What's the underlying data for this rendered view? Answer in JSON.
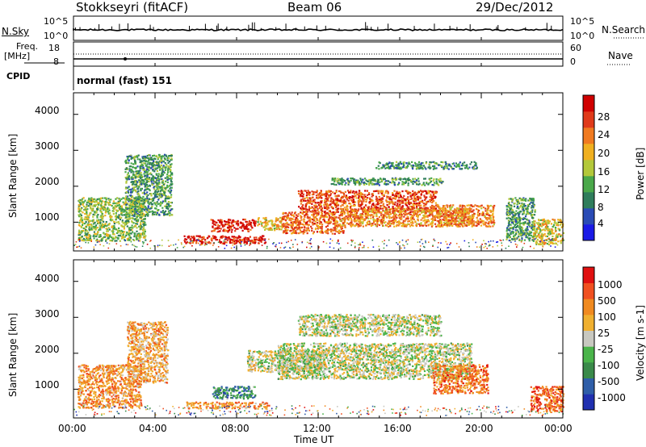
{
  "header": {
    "station": "Stokkseyri (fitACF)",
    "beam": "Beam 06",
    "date": "29/Dec/2012"
  },
  "strip_panels": {
    "nsky": {
      "label": "N.Sky",
      "left_tick_top": "10^5",
      "left_tick_bottom": "10^0",
      "right_label": "N.Search",
      "right_tick_top": "10^5",
      "right_tick_bottom": "10^0"
    },
    "freq": {
      "label_line1": "Freq.",
      "label_line2": "[MHz]",
      "left_tick_top": "18",
      "left_tick_bottom": "8",
      "right_label": "Nave",
      "right_tick_top": "60",
      "right_tick_bottom": "0"
    },
    "cpid": {
      "label": "CPID",
      "value": "normal (fast) 151"
    }
  },
  "chart_data": [
    {
      "type": "heatmap",
      "name": "power",
      "xlabel": "",
      "ylabel": "Slant Range [km]",
      "x_ticks": [
        "00:00",
        "04:00",
        "08:00",
        "12:00",
        "16:00",
        "20:00",
        "00:00"
      ],
      "y_ticks": [
        "1000",
        "2000",
        "3000",
        "4000"
      ],
      "ylim": [
        200,
        4600
      ],
      "xlim_hours": [
        0,
        24
      ],
      "colorbar": {
        "label": "Power [dB]",
        "ticks": [
          "4",
          "8",
          "12",
          "16",
          "20",
          "24",
          "28"
        ],
        "colors": [
          "#1a1ae6",
          "#2a4bb5",
          "#2f7d5c",
          "#4aa84a",
          "#b3c83a",
          "#f0b020",
          "#f07a20",
          "#e03a1a",
          "#d00000"
        ]
      },
      "regions": [
        {
          "t0": 0.2,
          "t1": 3.5,
          "r0": 500,
          "r1": 1700,
          "level": 0.45
        },
        {
          "t0": 2.5,
          "t1": 4.8,
          "r0": 1200,
          "r1": 2900,
          "level": 0.35
        },
        {
          "t0": 5.4,
          "t1": 9.4,
          "r0": 420,
          "r1": 640,
          "level": 0.9
        },
        {
          "t0": 6.7,
          "t1": 8.9,
          "r0": 750,
          "r1": 1100,
          "level": 0.9
        },
        {
          "t0": 9.0,
          "t1": 10.2,
          "r0": 800,
          "r1": 1150,
          "level": 0.6
        },
        {
          "t0": 10.2,
          "t1": 13.3,
          "r0": 700,
          "r1": 1300,
          "level": 0.75
        },
        {
          "t0": 11.0,
          "t1": 17.8,
          "r0": 1300,
          "r1": 1900,
          "level": 0.8
        },
        {
          "t0": 13.0,
          "t1": 19.6,
          "r0": 900,
          "r1": 1400,
          "level": 0.7
        },
        {
          "t0": 12.6,
          "t1": 18.1,
          "r0": 2050,
          "r1": 2250,
          "level": 0.35
        },
        {
          "t0": 14.8,
          "t1": 19.8,
          "r0": 2500,
          "r1": 2700,
          "level": 0.3
        },
        {
          "t0": 17.8,
          "t1": 20.6,
          "r0": 900,
          "r1": 1500,
          "level": 0.7
        },
        {
          "t0": 21.2,
          "t1": 22.6,
          "r0": 500,
          "r1": 1700,
          "level": 0.35
        },
        {
          "t0": 22.5,
          "t1": 24.0,
          "r0": 400,
          "r1": 1100,
          "level": 0.55
        }
      ]
    },
    {
      "type": "heatmap",
      "name": "velocity",
      "xlabel": "Time UT",
      "ylabel": "Slant Range [km]",
      "x_ticks": [
        "00:00",
        "04:00",
        "08:00",
        "12:00",
        "16:00",
        "20:00",
        "00:00"
      ],
      "y_ticks": [
        "1000",
        "2000",
        "3000",
        "4000"
      ],
      "ylim": [
        200,
        4600
      ],
      "xlim_hours": [
        0,
        24
      ],
      "colorbar": {
        "label": "Velocity [m s-1]",
        "ticks": [
          "1000",
          "500",
          "100",
          "25",
          "-25",
          "-100",
          "-500",
          "-1000"
        ],
        "colors": [
          "#2030b0",
          "#2f5ea8",
          "#3a8a4a",
          "#4ab44a",
          "#c8c8c0",
          "#f0b030",
          "#f08a20",
          "#f05020",
          "#e01010"
        ]
      },
      "regions": [
        {
          "t0": 0.2,
          "t1": 3.3,
          "r0": 500,
          "r1": 1700,
          "level": 0.7
        },
        {
          "t0": 2.6,
          "t1": 4.6,
          "r0": 1200,
          "r1": 2900,
          "level": 0.65
        },
        {
          "t0": 5.5,
          "t1": 9.6,
          "r0": 480,
          "r1": 660,
          "level": 0.7
        },
        {
          "t0": 6.8,
          "t1": 8.9,
          "r0": 750,
          "r1": 1100,
          "level": 0.28
        },
        {
          "t0": 8.5,
          "t1": 12.3,
          "r0": 1500,
          "r1": 2100,
          "level": 0.5
        },
        {
          "t0": 10.0,
          "t1": 19.5,
          "r0": 1300,
          "r1": 2300,
          "level": 0.5
        },
        {
          "t0": 11.0,
          "t1": 18.0,
          "r0": 2500,
          "r1": 3100,
          "level": 0.5
        },
        {
          "t0": 17.6,
          "t1": 20.3,
          "r0": 900,
          "r1": 1700,
          "level": 0.75
        },
        {
          "t0": 22.4,
          "t1": 24.0,
          "r0": 400,
          "r1": 1100,
          "level": 0.8
        }
      ]
    }
  ]
}
